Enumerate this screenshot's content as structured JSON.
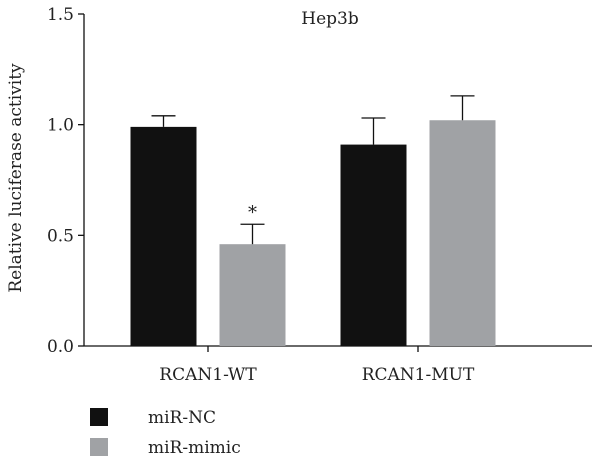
{
  "chart_data": {
    "type": "bar",
    "title": "Hep3b",
    "xlabel": "",
    "ylabel": "Relative luciferase activity",
    "ylim": [
      0,
      1.5
    ],
    "yticks": [
      "0.0",
      "0.5",
      "1.0",
      "1.5"
    ],
    "categories": [
      "RCAN1-WT",
      "RCAN1-MUT"
    ],
    "series": [
      {
        "name": "miR-NC",
        "color": "#111111",
        "values": [
          0.99,
          0.91
        ],
        "errors": [
          0.05,
          0.12
        ]
      },
      {
        "name": "miR-mimic",
        "color": "#a0a2a5",
        "values": [
          0.46,
          1.02
        ],
        "errors": [
          0.09,
          0.11
        ]
      }
    ],
    "annotations": [
      {
        "text": "*",
        "category": "RCAN1-WT",
        "series": "miR-mimic"
      }
    ],
    "legend_position": "bottom-left",
    "grid": false
  }
}
